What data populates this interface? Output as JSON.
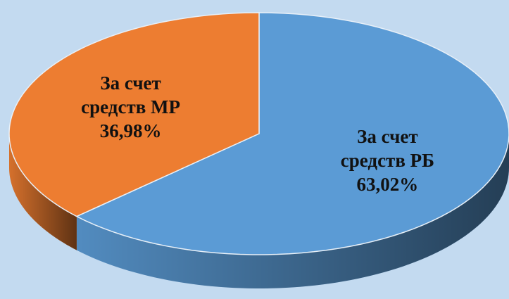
{
  "chart_data": {
    "type": "pie3d",
    "categories": [
      "За счет средств РБ",
      "За счет средств МР"
    ],
    "values": [
      63.02,
      36.98
    ],
    "value_labels": [
      "63,02%",
      "36,98%"
    ],
    "colors": [
      "#5b9bd5",
      "#ed7d31"
    ]
  }
}
